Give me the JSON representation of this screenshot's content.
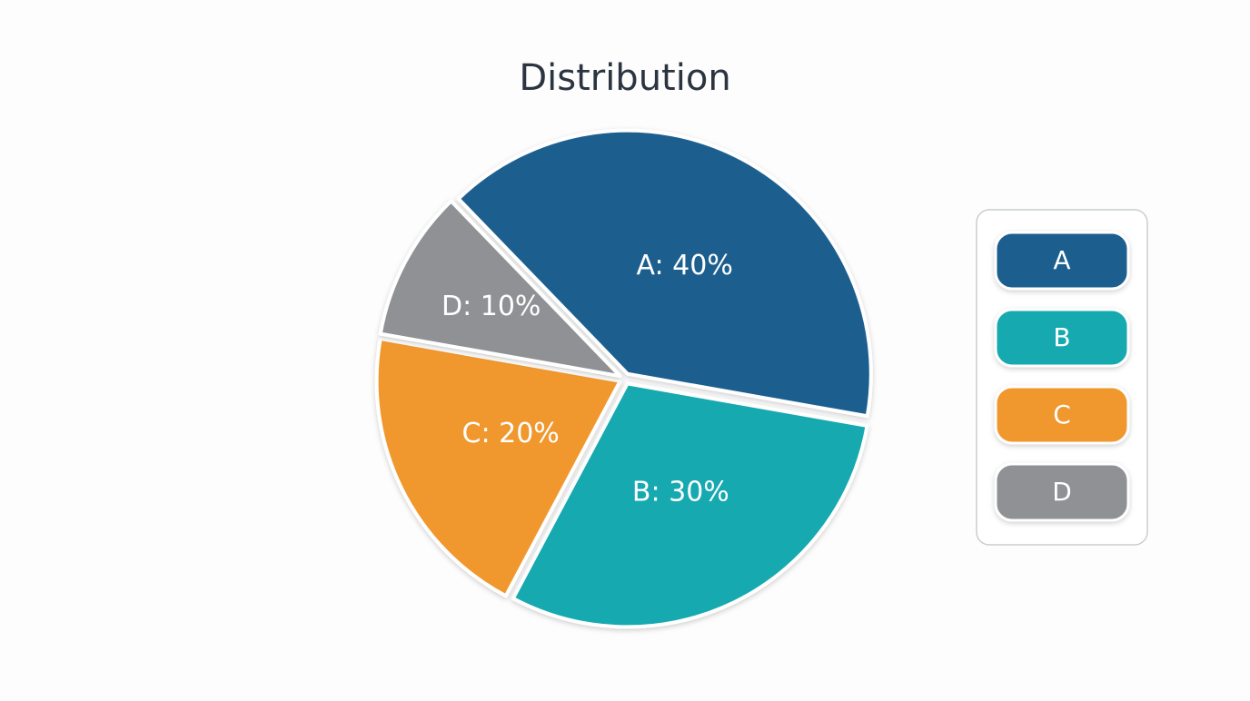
{
  "chart_data": {
    "type": "pie",
    "title": "Distribution",
    "categories": [
      "A",
      "B",
      "C",
      "D"
    ],
    "values": [
      40,
      30,
      20,
      10
    ],
    "value_labels": [
      "A: 40%",
      "B: 30%",
      "C: 20%",
      "D: 10%"
    ],
    "colors": [
      "#1a5e8f",
      "#13a9b0",
      "#f0982e",
      "#8f9194"
    ],
    "legend": "right"
  }
}
